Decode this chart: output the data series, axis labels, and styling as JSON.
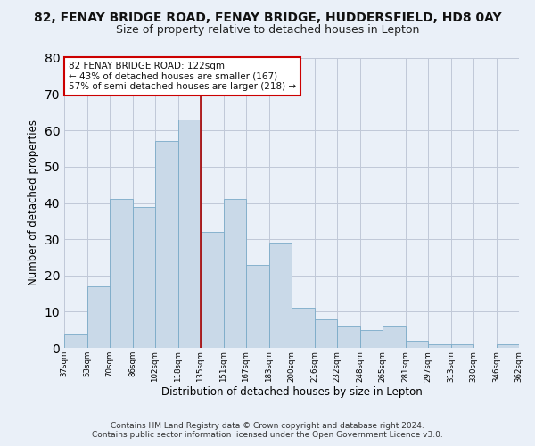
{
  "title1": "82, FENAY BRIDGE ROAD, FENAY BRIDGE, HUDDERSFIELD, HD8 0AY",
  "title2": "Size of property relative to detached houses in Lepton",
  "xlabel": "Distribution of detached houses by size in Lepton",
  "ylabel": "Number of detached properties",
  "bar_values": [
    4,
    17,
    41,
    39,
    57,
    63,
    32,
    41,
    23,
    29,
    11,
    8,
    6,
    5,
    6,
    2,
    1,
    1,
    0,
    1
  ],
  "bar_labels": [
    "37sqm",
    "53sqm",
    "70sqm",
    "86sqm",
    "102sqm",
    "118sqm",
    "135sqm",
    "151sqm",
    "167sqm",
    "183sqm",
    "200sqm",
    "216sqm",
    "232sqm",
    "248sqm",
    "265sqm",
    "281sqm",
    "297sqm",
    "313sqm",
    "330sqm",
    "346sqm",
    "362sqm"
  ],
  "bar_color": "#c9d9e8",
  "bar_edge_color": "#7aaac8",
  "grid_color": "#c0c8d8",
  "annotation_line1": "82 FENAY BRIDGE ROAD: 122sqm",
  "annotation_line2": "← 43% of detached houses are smaller (167)",
  "annotation_line3": "57% of semi-detached houses are larger (218) →",
  "annotation_box_color": "#ffffff",
  "annotation_box_edge": "#cc0000",
  "vline_color": "#aa0000",
  "vline_x_index": 5,
  "ylim": [
    0,
    80
  ],
  "yticks": [
    0,
    10,
    20,
    30,
    40,
    50,
    60,
    70,
    80
  ],
  "footnote": "Contains HM Land Registry data © Crown copyright and database right 2024.\nContains public sector information licensed under the Open Government Licence v3.0.",
  "background_color": "#eaf0f8",
  "title1_fontsize": 10,
  "title2_fontsize": 9,
  "xlabel_fontsize": 8.5,
  "ylabel_fontsize": 8.5,
  "footnote_fontsize": 6.5,
  "annotation_fontsize": 7.5
}
